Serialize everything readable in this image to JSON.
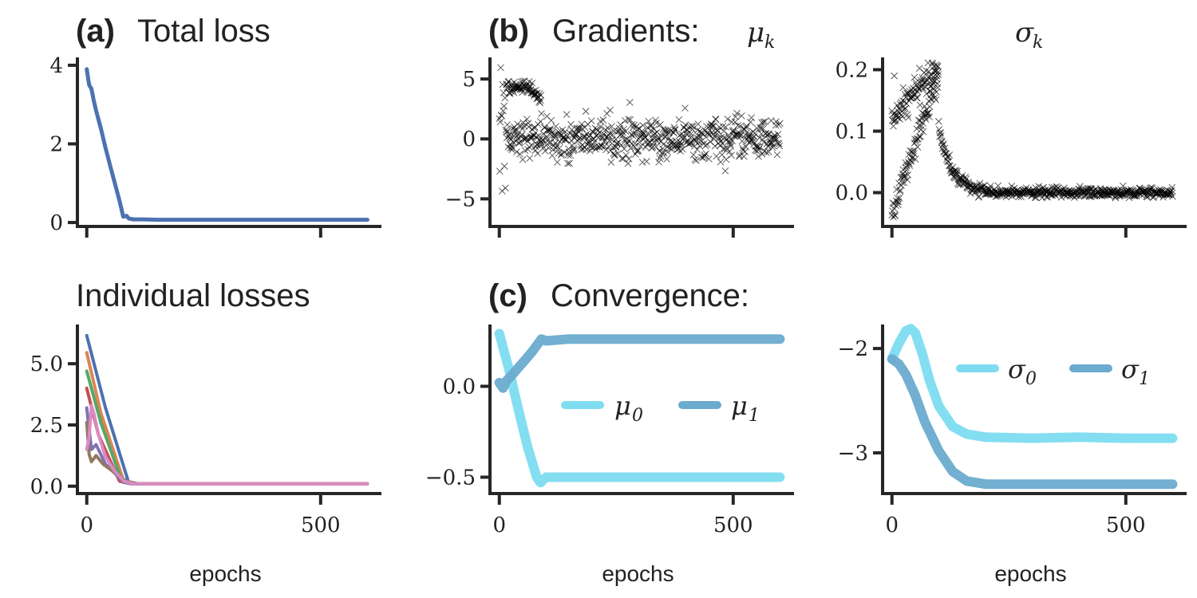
{
  "chart_data": [
    {
      "id": "a",
      "type": "line",
      "title_bold": "(a)",
      "title": "Total loss",
      "xlim": [
        -20,
        630
      ],
      "ylim": [
        -0.1,
        4.2
      ],
      "yticks": [
        0,
        2,
        4
      ],
      "ytick_labels": [
        "0",
        "2",
        "4"
      ],
      "xticks": [
        0,
        500
      ],
      "xtick_labels": [
        "",
        ""
      ],
      "xlabel": "",
      "series": [
        {
          "color": "#4c72b0",
          "x": [
            0,
            5,
            10,
            15,
            20,
            30,
            40,
            50,
            60,
            70,
            78,
            85,
            90,
            95,
            100,
            120,
            150,
            200,
            300,
            400,
            500,
            600
          ],
          "y": [
            3.9,
            3.5,
            3.4,
            3.1,
            2.85,
            2.4,
            1.9,
            1.45,
            1.0,
            0.55,
            0.15,
            0.17,
            0.1,
            0.09,
            0.08,
            0.08,
            0.07,
            0.07,
            0.07,
            0.07,
            0.07,
            0.07
          ]
        }
      ]
    },
    {
      "id": "b1",
      "type": "scatter",
      "title_bold": "(b)",
      "title": "Gradients:",
      "math_title": "μ",
      "math_sub": "k",
      "xlim": [
        -20,
        630
      ],
      "ylim": [
        -7.3,
        6.8
      ],
      "yticks": [
        -5,
        0,
        5
      ],
      "ytick_labels": [
        "−5",
        "0",
        "5"
      ],
      "xticks": [
        0,
        500
      ],
      "xtick_labels": [
        "",
        ""
      ],
      "xlabel": "",
      "marker": "x",
      "color": "#000000",
      "pattern": "noisy gradients: branch near +4.5 and branch near 0 for epochs 0-90, then scattered around 0 (±1.5) through epoch 600; early dips to about −6.5"
    },
    {
      "id": "b2",
      "type": "scatter",
      "math_title": "σ",
      "math_sub": "k",
      "xlim": [
        -20,
        630
      ],
      "ylim": [
        -0.055,
        0.22
      ],
      "yticks": [
        0.0,
        0.1,
        0.2
      ],
      "ytick_labels": [
        "0.0",
        "0.1",
        "0.2"
      ],
      "xticks": [
        0,
        500
      ],
      "xtick_labels": [
        "",
        ""
      ],
      "xlabel": "",
      "marker": "x",
      "color": "#000000",
      "pattern": "two branches rising to a peak of about 0.2 near epoch 80, then decaying to 0 by epoch 200 and staying near 0"
    },
    {
      "id": "c0",
      "type": "line",
      "title": "Individual losses",
      "xlim": [
        -20,
        630
      ],
      "ylim": [
        -0.3,
        6.6
      ],
      "yticks": [
        0.0,
        2.5,
        5.0
      ],
      "ytick_labels": [
        "0.0",
        "2.5",
        "5.0"
      ],
      "xticks": [
        0,
        500
      ],
      "xtick_labels": [
        "0",
        "500"
      ],
      "xlabel": "epochs",
      "series": [
        {
          "color": "#4c72b0",
          "x": [
            0,
            40,
            90,
            110,
            600
          ],
          "y": [
            6.15,
            3.2,
            0.12,
            0.1,
            0.1
          ]
        },
        {
          "color": "#dd8452",
          "x": [
            0,
            30,
            80,
            100,
            600
          ],
          "y": [
            5.45,
            3.0,
            0.15,
            0.1,
            0.1
          ]
        },
        {
          "color": "#55a868",
          "x": [
            0,
            30,
            75,
            100,
            600
          ],
          "y": [
            4.7,
            2.6,
            0.2,
            0.1,
            0.1
          ]
        },
        {
          "color": "#c44e52",
          "x": [
            0,
            25,
            70,
            95,
            600
          ],
          "y": [
            4.0,
            2.1,
            0.2,
            0.1,
            0.1
          ]
        },
        {
          "color": "#8172b3",
          "x": [
            0,
            10,
            20,
            40,
            80,
            100,
            600
          ],
          "y": [
            3.2,
            1.5,
            1.7,
            0.9,
            0.15,
            0.1,
            0.1
          ]
        },
        {
          "color": "#937860",
          "x": [
            0,
            5,
            10,
            20,
            35,
            60,
            85,
            110,
            600
          ],
          "y": [
            2.6,
            1.3,
            1.0,
            1.25,
            0.9,
            0.55,
            0.2,
            0.1,
            0.1
          ]
        },
        {
          "color": "#da8bc3",
          "x": [
            0,
            5,
            10,
            15,
            25,
            40,
            60,
            80,
            100,
            600
          ],
          "y": [
            1.5,
            2.0,
            3.3,
            3.0,
            2.1,
            1.2,
            0.6,
            0.2,
            0.1,
            0.1
          ]
        }
      ]
    },
    {
      "id": "c1",
      "type": "line",
      "title_bold": "(c)",
      "title": "Convergence:",
      "xlim": [
        -20,
        630
      ],
      "ylim": [
        -0.59,
        0.34
      ],
      "yticks": [
        -0.5,
        0.0
      ],
      "ytick_labels": [
        "−0.5",
        "0.0"
      ],
      "xticks": [
        0,
        500
      ],
      "xtick_labels": [
        "0",
        "500"
      ],
      "xlabel": "epochs",
      "legend_position": "center-right",
      "series": [
        {
          "name": "μ",
          "sub": "0",
          "color": "#7ddcf0",
          "x": [
            0,
            20,
            40,
            60,
            80,
            88,
            100,
            150,
            300,
            600
          ],
          "y": [
            0.29,
            0.1,
            -0.12,
            -0.33,
            -0.5,
            -0.53,
            -0.5,
            -0.5,
            -0.5,
            -0.5
          ]
        },
        {
          "name": "μ",
          "sub": "1",
          "color": "#6aabcf",
          "x": [
            0,
            8,
            15,
            30,
            50,
            70,
            90,
            100,
            150,
            300,
            600
          ],
          "y": [
            0.02,
            -0.01,
            0.03,
            0.07,
            0.13,
            0.19,
            0.26,
            0.25,
            0.26,
            0.26,
            0.26
          ]
        }
      ]
    },
    {
      "id": "c2",
      "type": "line",
      "xlim": [
        -20,
        630
      ],
      "ylim": [
        -3.39,
        -1.77
      ],
      "yticks": [
        -3,
        -2
      ],
      "ytick_labels": [
        "−3",
        "−2"
      ],
      "xticks": [
        0,
        500
      ],
      "xtick_labels": [
        "0",
        "500"
      ],
      "xlabel": "epochs",
      "legend_position": "top-right",
      "series": [
        {
          "name": "σ",
          "sub": "0",
          "color": "#7ddcf0",
          "x": [
            0,
            15,
            30,
            40,
            50,
            65,
            80,
            100,
            130,
            160,
            200,
            300,
            400,
            500,
            600
          ],
          "y": [
            -2.1,
            -1.95,
            -1.83,
            -1.81,
            -1.85,
            -2.05,
            -2.3,
            -2.55,
            -2.75,
            -2.82,
            -2.85,
            -2.86,
            -2.85,
            -2.86,
            -2.86
          ]
        },
        {
          "name": "σ",
          "sub": "1",
          "color": "#6aabcf",
          "x": [
            0,
            15,
            30,
            50,
            70,
            100,
            130,
            160,
            200,
            300,
            400,
            500,
            600
          ],
          "y": [
            -2.1,
            -2.15,
            -2.25,
            -2.45,
            -2.7,
            -2.98,
            -3.18,
            -3.27,
            -3.3,
            -3.3,
            -3.3,
            -3.3,
            -3.3
          ]
        }
      ]
    }
  ]
}
